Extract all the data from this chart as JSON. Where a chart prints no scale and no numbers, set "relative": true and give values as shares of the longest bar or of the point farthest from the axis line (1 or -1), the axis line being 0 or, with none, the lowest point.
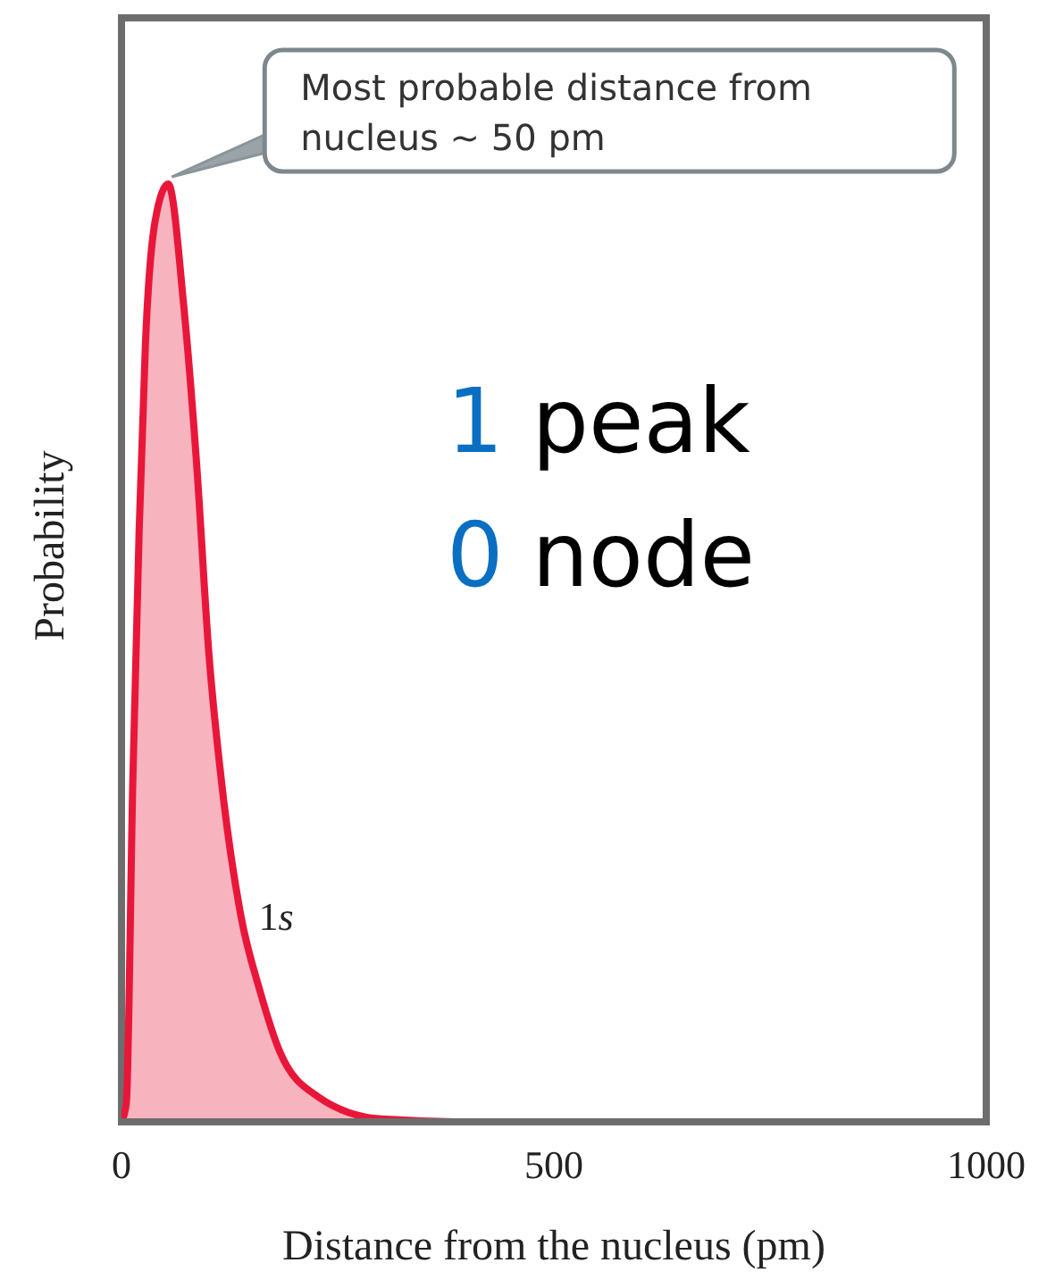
{
  "chart_data": {
    "type": "area",
    "relative": true,
    "xlabel": "Distance from the nucleus (pm)",
    "ylabel": "Probability",
    "xlim": [
      0,
      1000
    ],
    "xticks": [
      0,
      500,
      1000
    ],
    "x": [
      0,
      5.6,
      13,
      20.4,
      27.7,
      38.8,
      54,
      72,
      87,
      101,
      116,
      138,
      160,
      183,
      227,
      301,
      400,
      600,
      800,
      1000
    ],
    "series": [
      {
        "name": "1s",
        "color": "#e8173a",
        "values": [
          0,
          0.02,
          0.36,
          0.63,
          0.83,
          0.96,
          1,
          0.87,
          0.7,
          0.5,
          0.36,
          0.22,
          0.14,
          0.075,
          0.027,
          0.003,
          0,
          0,
          0,
          0
        ]
      }
    ],
    "annotations": [
      {
        "text": "Most probable distance from nucleus ~ 50 pm",
        "x": 54,
        "y": 1
      },
      "1 peak",
      "0 node"
    ]
  }
}
